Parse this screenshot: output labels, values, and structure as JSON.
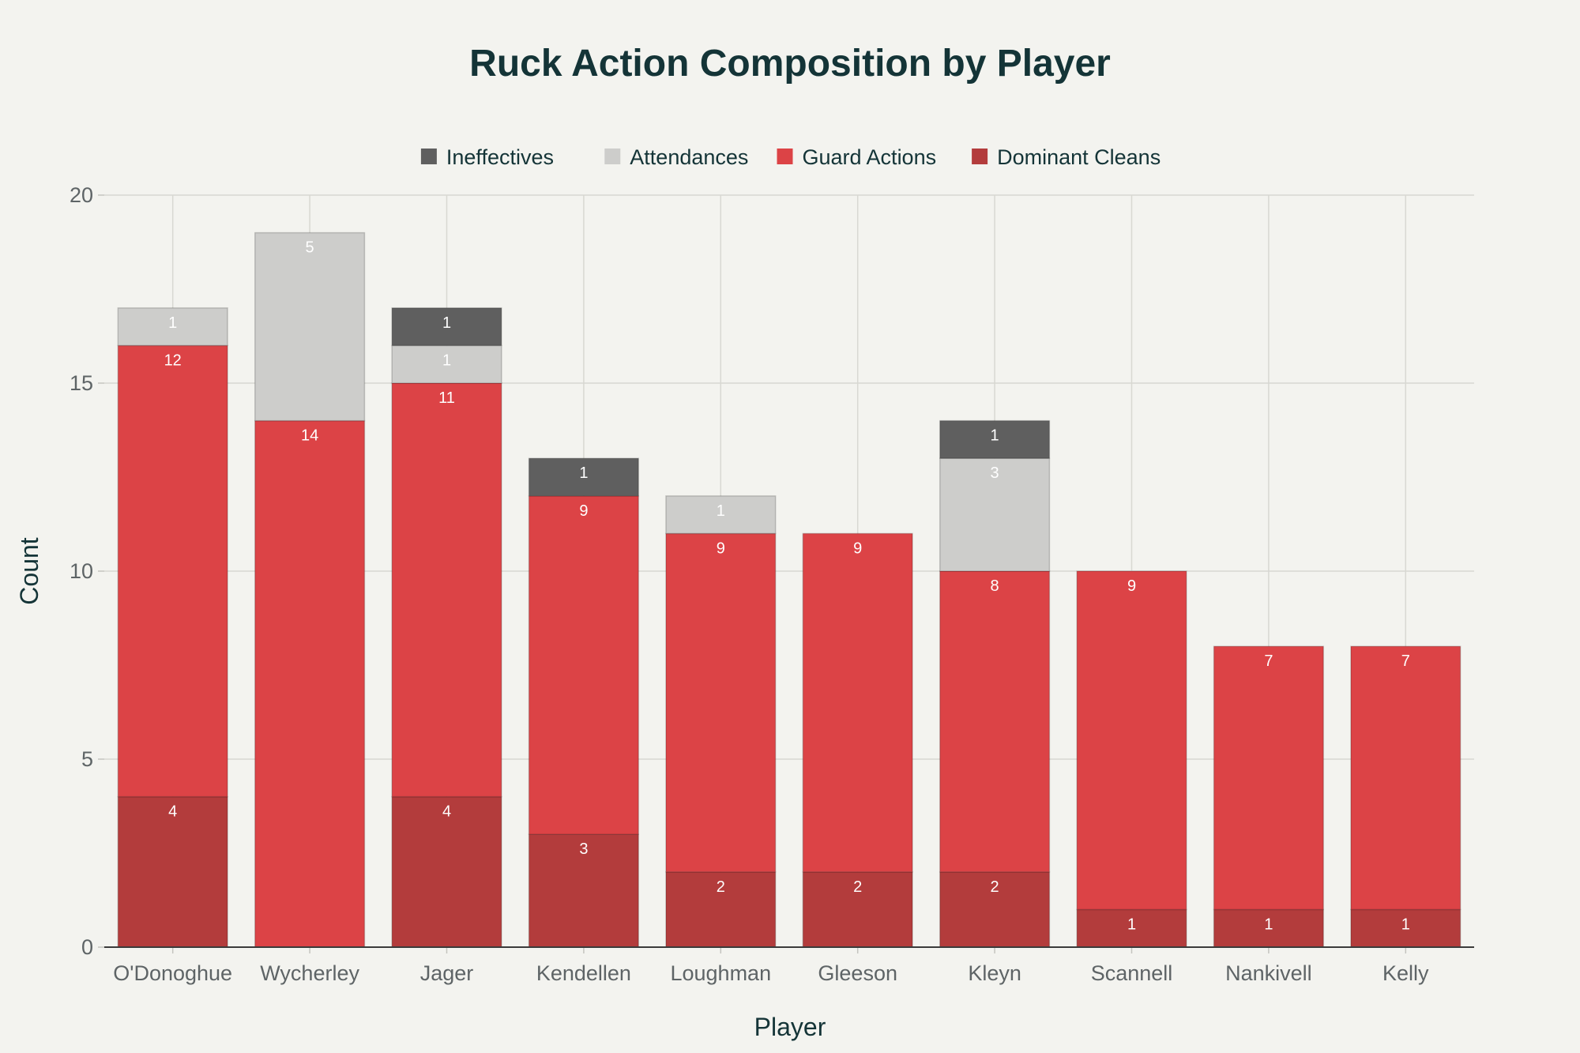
{
  "chart_data": {
    "type": "bar",
    "stacked": true,
    "title": "Ruck Action Composition by Player",
    "xlabel": "Player",
    "ylabel": "Count",
    "ylim": [
      0,
      20
    ],
    "yticks": [
      0,
      5,
      10,
      15,
      20
    ],
    "grid": true,
    "legend_position": "top-center",
    "categories": [
      "O'Donoghue",
      "Wycherley",
      "Jager",
      "Kendellen",
      "Loughman",
      "Gleeson",
      "Kleyn",
      "Scannell",
      "Nankivell",
      "Kelly"
    ],
    "series": [
      {
        "name": "Dominant Cleans",
        "color": "#b33c3c",
        "values": [
          4,
          0,
          4,
          3,
          2,
          2,
          2,
          1,
          1,
          1
        ]
      },
      {
        "name": "Guard Actions",
        "color": "#dc4346",
        "values": [
          12,
          14,
          11,
          9,
          9,
          9,
          8,
          9,
          7,
          7
        ]
      },
      {
        "name": "Attendances",
        "color": "#cdcdcb",
        "values": [
          1,
          5,
          1,
          0,
          1,
          0,
          3,
          0,
          0,
          0
        ]
      },
      {
        "name": "Ineffectives",
        "color": "#5f5f5f",
        "values": [
          0,
          0,
          1,
          1,
          0,
          0,
          1,
          0,
          0,
          0
        ]
      }
    ],
    "legend_order": [
      "Ineffectives",
      "Attendances",
      "Guard Actions",
      "Dominant Cleans"
    ]
  }
}
